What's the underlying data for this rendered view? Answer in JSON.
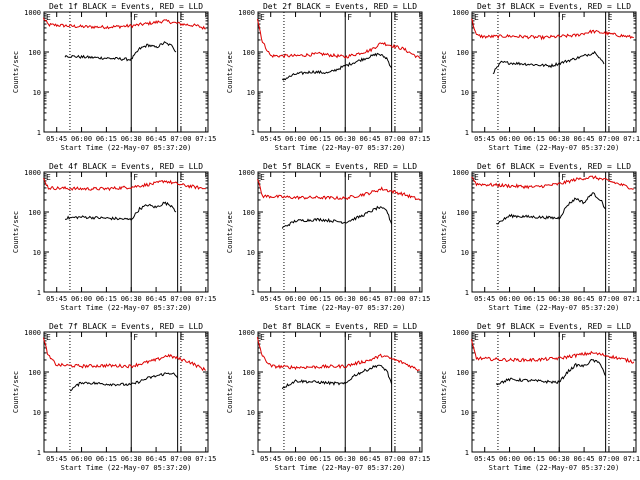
{
  "chart_data": {
    "type": "line",
    "layout": "3x3 grid",
    "xlabel": "Start Time (22-May-07 05:37:20)",
    "ylabel": "Counts/sec",
    "yscale": "log",
    "ylim": [
      1,
      1000
    ],
    "y_tick_labels": [
      "1",
      "10",
      "100",
      "1000"
    ],
    "x_tick_labels": [
      "05:45",
      "06:00",
      "06:15",
      "06:30",
      "06:45",
      "07:00",
      "07:15"
    ],
    "xlim_minutes_after_start": [
      0,
      99
    ],
    "colors": {
      "events": "#000000",
      "lld": "#dd0000"
    },
    "panels": [
      {
        "title": "Det 1f BLACK = Events, RED = LLD",
        "markers": [
          {
            "label": "E",
            "t": "05:37:20"
          },
          {
            "label": "F",
            "t": "06:30"
          },
          {
            "label": "E",
            "t": "06:58"
          }
        ],
        "dotted_lines": [
          "05:53",
          "07:00"
        ],
        "events": {
          "t": [
            "05:50",
            "06:00",
            "06:15",
            "06:30",
            "06:35",
            "06:40",
            "06:45",
            "06:50",
            "06:55",
            "06:57"
          ],
          "v": [
            80,
            75,
            70,
            65,
            120,
            150,
            130,
            170,
            140,
            100
          ]
        },
        "lld": {
          "t": [
            "05:37",
            "05:40",
            "06:00",
            "06:15",
            "06:30",
            "06:45",
            "06:50",
            "07:00",
            "07:10",
            "07:15"
          ],
          "v": [
            700,
            480,
            430,
            420,
            450,
            550,
            600,
            500,
            450,
            380
          ]
        }
      },
      {
        "title": "Det 2f BLACK = Events, RED = LLD",
        "markers": [
          {
            "label": "E",
            "t": "05:37:20"
          },
          {
            "label": "F",
            "t": "06:30"
          },
          {
            "label": "E",
            "t": "06:58"
          }
        ],
        "dotted_lines": [
          "05:53",
          "07:00"
        ],
        "events": {
          "t": [
            "05:52",
            "06:00",
            "06:10",
            "06:20",
            "06:30",
            "06:40",
            "06:50",
            "06:55",
            "06:58"
          ],
          "v": [
            20,
            28,
            32,
            30,
            45,
            65,
            90,
            70,
            40
          ]
        },
        "lld": {
          "t": [
            "05:37",
            "05:40",
            "05:45",
            "06:00",
            "06:15",
            "06:30",
            "06:45",
            "06:52",
            "07:05",
            "07:15"
          ],
          "v": [
            700,
            180,
            80,
            80,
            90,
            75,
            110,
            170,
            120,
            70
          ]
        }
      },
      {
        "title": "Det 3f BLACK = Events, RED = LLD",
        "markers": [
          {
            "label": "E",
            "t": "05:37:20"
          },
          {
            "label": "F",
            "t": "06:30"
          },
          {
            "label": "E",
            "t": "06:58"
          }
        ],
        "dotted_lines": [
          "05:53",
          "07:00"
        ],
        "events": {
          "t": [
            "05:50",
            "05:55",
            "06:10",
            "06:25",
            "06:35",
            "06:45",
            "06:52",
            "06:57"
          ],
          "v": [
            30,
            55,
            50,
            45,
            60,
            80,
            100,
            50
          ]
        },
        "lld": {
          "t": [
            "05:37",
            "05:40",
            "05:45",
            "06:00",
            "06:20",
            "06:40",
            "06:50",
            "07:15"
          ],
          "v": [
            700,
            260,
            240,
            250,
            230,
            260,
            330,
            230
          ]
        }
      },
      {
        "title": "Det 4f BLACK = Events, RED = LLD",
        "markers": [
          {
            "label": "E",
            "t": "05:37:20"
          },
          {
            "label": "F",
            "t": "06:30"
          },
          {
            "label": "E",
            "t": "06:58"
          }
        ],
        "dotted_lines": [
          "05:53",
          "07:00"
        ],
        "events": {
          "t": [
            "05:50",
            "06:00",
            "06:15",
            "06:30",
            "06:35",
            "06:40",
            "06:45",
            "06:50",
            "06:55",
            "06:57"
          ],
          "v": [
            70,
            75,
            70,
            65,
            120,
            150,
            130,
            170,
            140,
            100
          ]
        },
        "lld": {
          "t": [
            "05:37",
            "05:40",
            "06:00",
            "06:15",
            "06:30",
            "06:45",
            "06:50",
            "07:00",
            "07:15"
          ],
          "v": [
            700,
            400,
            380,
            380,
            420,
            520,
            600,
            480,
            380
          ]
        }
      },
      {
        "title": "Det 5f BLACK = Events, RED = LLD",
        "markers": [
          {
            "label": "E",
            "t": "05:37:20"
          },
          {
            "label": "F",
            "t": "06:30"
          },
          {
            "label": "E",
            "t": "06:58"
          }
        ],
        "dotted_lines": [
          "05:53",
          "07:00"
        ],
        "events": {
          "t": [
            "05:52",
            "06:00",
            "06:15",
            "06:30",
            "06:40",
            "06:50",
            "06:55",
            "06:58"
          ],
          "v": [
            40,
            60,
            65,
            55,
            80,
            130,
            110,
            50
          ]
        },
        "lld": {
          "t": [
            "05:37",
            "05:40",
            "06:00",
            "06:15",
            "06:30",
            "06:45",
            "06:52",
            "07:05",
            "07:15"
          ],
          "v": [
            700,
            250,
            230,
            230,
            220,
            300,
            380,
            280,
            200
          ]
        }
      },
      {
        "title": "Det 6f BLACK = Events, RED = LLD",
        "markers": [
          {
            "label": "E",
            "t": "05:37:20"
          },
          {
            "label": "F",
            "t": "06:30"
          },
          {
            "label": "E",
            "t": "06:58"
          }
        ],
        "dotted_lines": [
          "05:53",
          "07:00"
        ],
        "events": {
          "t": [
            "05:52",
            "06:00",
            "06:15",
            "06:30",
            "06:35",
            "06:40",
            "06:45",
            "06:50",
            "06:55",
            "06:58"
          ],
          "v": [
            50,
            80,
            75,
            70,
            150,
            220,
            170,
            300,
            200,
            120
          ]
        },
        "lld": {
          "t": [
            "05:37",
            "05:40",
            "06:00",
            "06:15",
            "06:30",
            "06:40",
            "06:50",
            "07:00",
            "07:15"
          ],
          "v": [
            800,
            500,
            450,
            420,
            500,
            650,
            750,
            600,
            380
          ]
        }
      },
      {
        "title": "Det 7f BLACK = Events, RED = LLD",
        "markers": [
          {
            "label": "E",
            "t": "05:37:20"
          },
          {
            "label": "F",
            "t": "06:30"
          },
          {
            "label": "E",
            "t": "06:58"
          }
        ],
        "dotted_lines": [
          "05:53",
          "07:00"
        ],
        "events": {
          "t": [
            "05:53",
            "06:00",
            "06:15",
            "06:30",
            "06:40",
            "06:50",
            "06:55",
            "06:58"
          ],
          "v": [
            35,
            55,
            50,
            48,
            70,
            90,
            95,
            70
          ]
        },
        "lld": {
          "t": [
            "05:37",
            "05:40",
            "05:45",
            "06:00",
            "06:15",
            "06:30",
            "06:45",
            "06:52",
            "07:05",
            "07:15"
          ],
          "v": [
            700,
            250,
            150,
            140,
            145,
            140,
            200,
            260,
            180,
            110
          ]
        }
      },
      {
        "title": "Det 8f BLACK = Events, RED = LLD",
        "markers": [
          {
            "label": "E",
            "t": "05:37:20"
          },
          {
            "label": "F",
            "t": "06:30"
          },
          {
            "label": "E",
            "t": "06:58"
          }
        ],
        "dotted_lines": [
          "05:53",
          "07:00"
        ],
        "events": {
          "t": [
            "05:52",
            "06:00",
            "06:15",
            "06:30",
            "06:35",
            "06:40",
            "06:50",
            "06:55",
            "06:58"
          ],
          "v": [
            40,
            60,
            55,
            50,
            80,
            100,
            150,
            110,
            50
          ]
        },
        "lld": {
          "t": [
            "05:37",
            "05:40",
            "05:45",
            "06:00",
            "06:15",
            "06:30",
            "06:45",
            "06:52",
            "07:05",
            "07:15"
          ],
          "v": [
            700,
            250,
            140,
            130,
            135,
            140,
            200,
            260,
            170,
            110
          ]
        }
      },
      {
        "title": "Det 9f BLACK = Events, RED = LLD",
        "markers": [
          {
            "label": "E",
            "t": "05:37:20"
          },
          {
            "label": "F",
            "t": "06:30"
          },
          {
            "label": "E",
            "t": "06:58"
          }
        ],
        "dotted_lines": [
          "05:53",
          "07:00"
        ],
        "events": {
          "t": [
            "05:52",
            "06:00",
            "06:15",
            "06:30",
            "06:35",
            "06:40",
            "06:45",
            "06:50",
            "06:55",
            "06:58"
          ],
          "v": [
            50,
            65,
            60,
            55,
            100,
            150,
            140,
            200,
            160,
            80
          ]
        },
        "lld": {
          "t": [
            "05:37",
            "05:40",
            "06:00",
            "06:15",
            "06:30",
            "06:40",
            "06:50",
            "07:00",
            "07:15"
          ],
          "v": [
            600,
            220,
            200,
            200,
            220,
            260,
            300,
            250,
            180
          ]
        }
      }
    ]
  }
}
